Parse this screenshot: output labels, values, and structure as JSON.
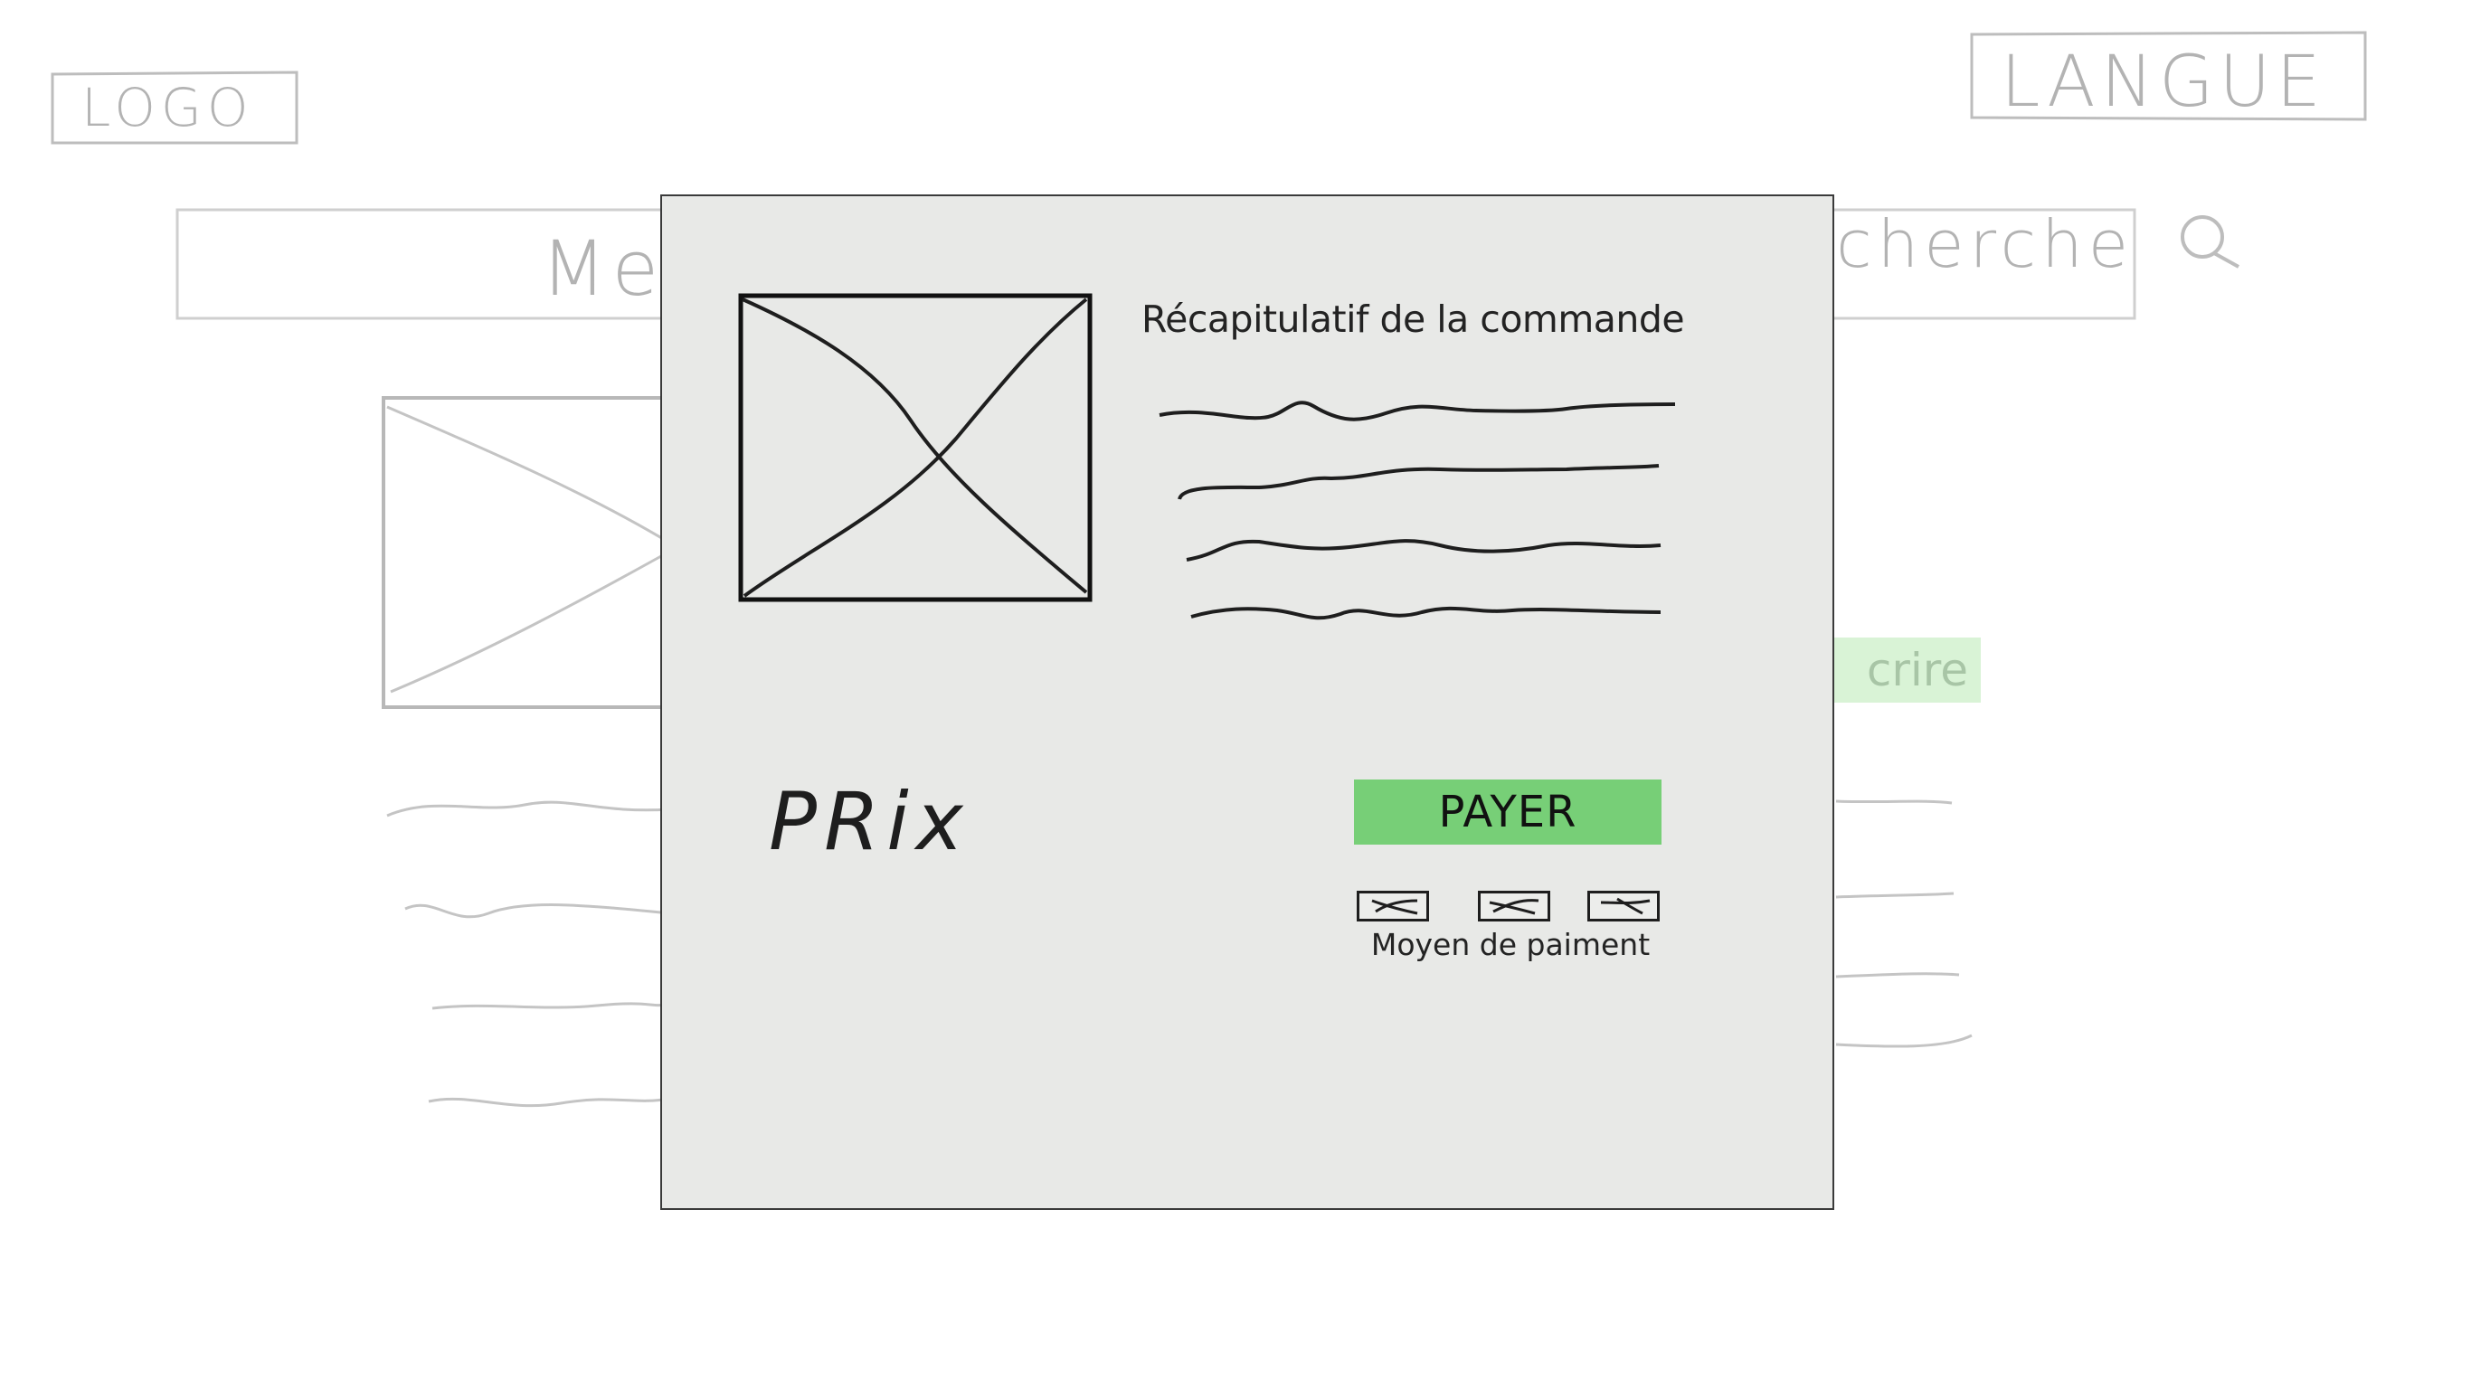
{
  "background": {
    "logo": "LOGO",
    "language": "LANGUE",
    "search_partial_left": "Me",
    "search_partial_right": "cherche",
    "search_icon": "search-icon",
    "subscribe_partial": "crire"
  },
  "modal": {
    "summary_title": "Récapitulatif de la commande",
    "price_label": "PRix",
    "pay_button": "PAYER",
    "payment_methods_label": "Moyen de paiment",
    "product_image_icon": "image-placeholder-icon"
  },
  "colors": {
    "pay_button": "#77cf77",
    "modal_background": "#e8e9e7",
    "subscribe_faded": "#d9f3d6"
  }
}
